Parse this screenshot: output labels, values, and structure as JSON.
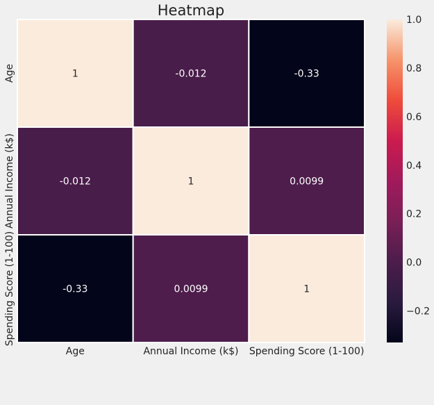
{
  "chart_data": {
    "type": "heatmap",
    "title": "Heatmap",
    "x_categories": [
      "Age",
      "Annual Income (k$)",
      "Spending Score (1-100)"
    ],
    "y_categories": [
      "Age",
      "Annual Income (k$)",
      "Spending Score (1-100)"
    ],
    "values": [
      [
        1,
        -0.012,
        -0.33
      ],
      [
        -0.012,
        1,
        0.0099
      ],
      [
        -0.33,
        0.0099,
        1
      ]
    ],
    "annotations": [
      [
        "1",
        "-0.012",
        "-0.33"
      ],
      [
        "-0.012",
        "1",
        "0.0099"
      ],
      [
        "-0.33",
        "0.0099",
        "1"
      ]
    ],
    "colorbar": {
      "colormap": "rocket",
      "vmin": -0.33,
      "vmax": 1.0,
      "ticks": [
        -0.2,
        0.0,
        0.2,
        0.4,
        0.6,
        0.8,
        1.0
      ],
      "tick_labels": [
        "−0.2",
        "0.0",
        "0.2",
        "0.4",
        "0.6",
        "0.8",
        "1.0"
      ]
    },
    "grid": false,
    "colors": {
      "background": "#f0f0f0",
      "cell_border": "#ffffff",
      "text": "#222222"
    }
  }
}
